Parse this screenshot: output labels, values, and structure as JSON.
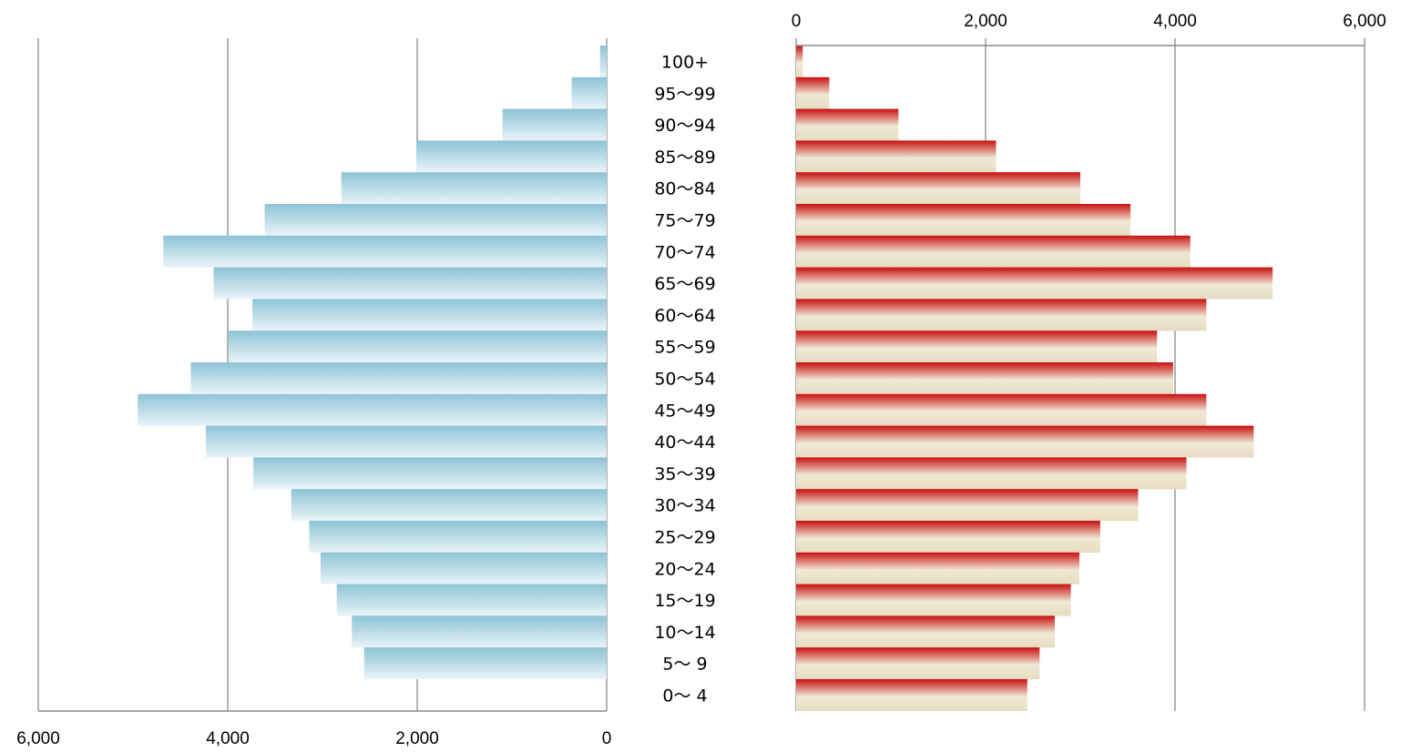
{
  "chart_data": {
    "type": "bar",
    "orientation": "horizontal",
    "layout": "population-pyramid",
    "title": "",
    "categories": [
      "100+",
      "95〜99",
      "90〜94",
      "85〜89",
      "80〜84",
      "75〜79",
      "70〜74",
      "65〜69",
      "60〜64",
      "55〜59",
      "50〜54",
      "45〜49",
      "40〜44",
      "35〜39",
      "30〜34",
      "25〜29",
      "20〜24",
      "15〜19",
      "10〜14",
      "5〜 9",
      "0〜 4"
    ],
    "series": [
      {
        "side": "left",
        "color_top": "#8ec3d6",
        "color_bottom": "#eaf4f8",
        "values": [
          70,
          370,
          1100,
          2010,
          2800,
          3610,
          4680,
          4150,
          3740,
          3990,
          4390,
          4950,
          4230,
          3730,
          3330,
          3140,
          3020,
          2850,
          2690,
          2560,
          null
        ]
      },
      {
        "side": "right",
        "color_top": "#c81010",
        "color_bottom": "#e6dcc0",
        "values": [
          70,
          350,
          1080,
          2110,
          3000,
          3530,
          4160,
          5030,
          4330,
          3810,
          3980,
          4330,
          4830,
          4120,
          3610,
          3210,
          2990,
          2900,
          2730,
          2570,
          2440
        ]
      }
    ],
    "left_axis": {
      "ticks": [
        6000,
        4000,
        2000,
        0
      ],
      "tick_labels": [
        "6,000",
        "4,000",
        "2,000",
        "0"
      ],
      "range": [
        0,
        6000
      ],
      "reversed": true,
      "position": "bottom"
    },
    "right_axis": {
      "ticks": [
        0,
        2000,
        4000,
        6000
      ],
      "tick_labels": [
        "0",
        "2,000",
        "4,000",
        "6,000"
      ],
      "range": [
        0,
        6000
      ],
      "position": "top"
    },
    "xlabel": "",
    "ylabel": "",
    "grid": true,
    "legend": "none"
  },
  "colors": {
    "axis": "#8a8a8a",
    "grid": "#9a9a9a"
  }
}
